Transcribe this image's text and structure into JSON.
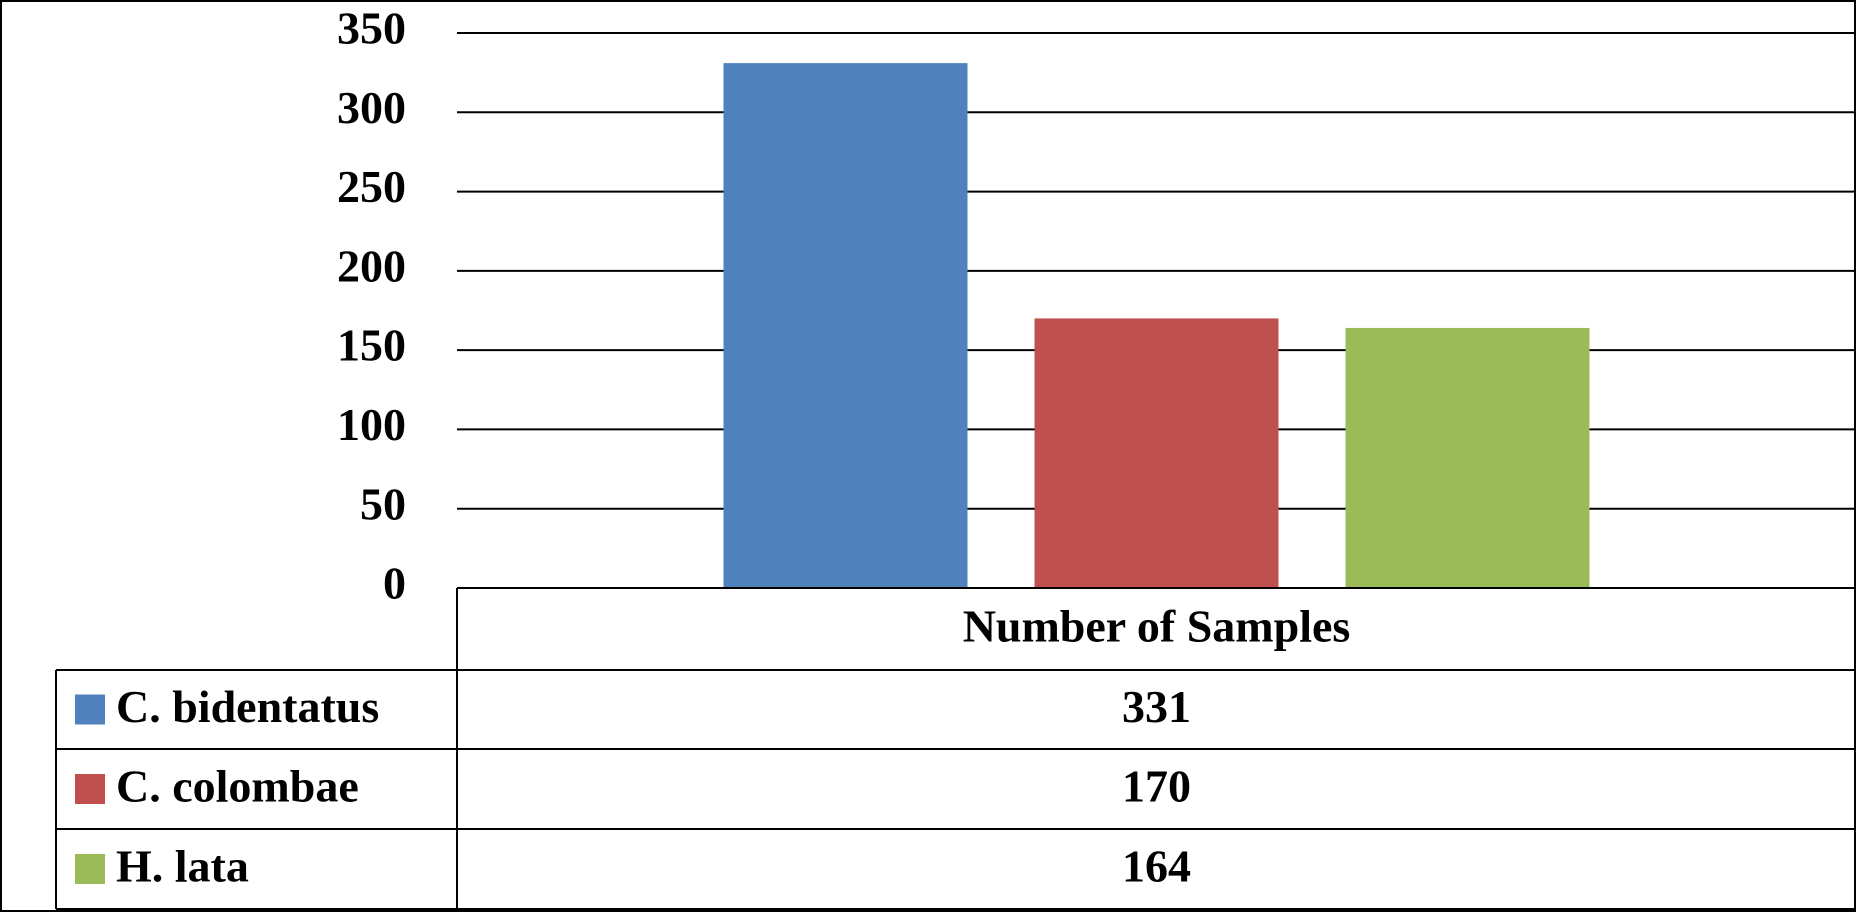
{
  "chart_data": {
    "type": "bar",
    "categories": [
      "Number of Samples"
    ],
    "series": [
      {
        "name": "C. bidentatus",
        "color": "#4f81bd",
        "values": [
          331
        ]
      },
      {
        "name": "C. colombae",
        "color": "#c0504d",
        "values": [
          170
        ]
      },
      {
        "name": "H. lata",
        "color": "#9bbb59",
        "values": [
          164
        ]
      }
    ],
    "ylim": [
      0,
      350
    ],
    "yticks": [
      0,
      50,
      100,
      150,
      200,
      250,
      300,
      350
    ],
    "grid": true
  }
}
